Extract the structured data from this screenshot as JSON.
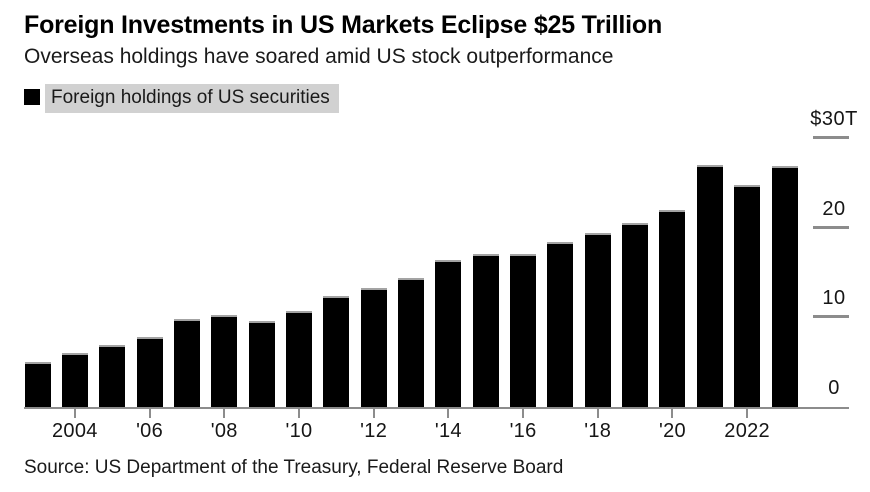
{
  "header": {
    "title": "Foreign Investments in US Markets Eclipse $25 Trillion",
    "subtitle": "Overseas holdings have soared amid US stock outperformance"
  },
  "legend": {
    "label": "Foreign holdings of US securities",
    "swatch_color": "#000000",
    "highlight_color": "#d1d1d1"
  },
  "footer": {
    "source": "Source: US Department of the Treasury, Federal Reserve Board"
  },
  "colors": {
    "bar": "#000000",
    "axis": "#8c8c8c",
    "text": "#161616",
    "background": "#ffffff"
  },
  "chart_data": {
    "type": "bar",
    "title": "Foreign Investments in US Markets Eclipse $25 Trillion",
    "subtitle": "Overseas holdings have soared amid US stock outperformance",
    "series_name": "Foreign holdings of US securities",
    "unit": "USD trillions",
    "categories": [
      "2003",
      "2004",
      "2005",
      "2006",
      "2007",
      "2008",
      "2009",
      "2010",
      "2011",
      "2012",
      "2013",
      "2014",
      "2015",
      "2016",
      "2017",
      "2018",
      "2019",
      "2020",
      "2021",
      "2022",
      "2023"
    ],
    "values": [
      5.0,
      6.0,
      6.9,
      7.8,
      9.8,
      10.3,
      9.6,
      10.7,
      12.4,
      13.3,
      14.4,
      16.4,
      17.1,
      17.1,
      18.4,
      19.4,
      20.5,
      22.0,
      27.0,
      24.8,
      26.9
    ],
    "x_tick_labels": [
      "2004",
      "'06",
      "'08",
      "'10",
      "'12",
      "'14",
      "'16",
      "'18",
      "'20",
      "2022"
    ],
    "y_ticks": [
      {
        "value": 0,
        "label": "0"
      },
      {
        "value": 10,
        "label": "10"
      },
      {
        "value": 20,
        "label": "20"
      },
      {
        "value": 30,
        "label": "$30T"
      }
    ],
    "ylim": [
      0,
      30
    ],
    "y_axis_position": "right",
    "legend_position": "top-left",
    "grid": false,
    "bar_color": "#000000"
  }
}
